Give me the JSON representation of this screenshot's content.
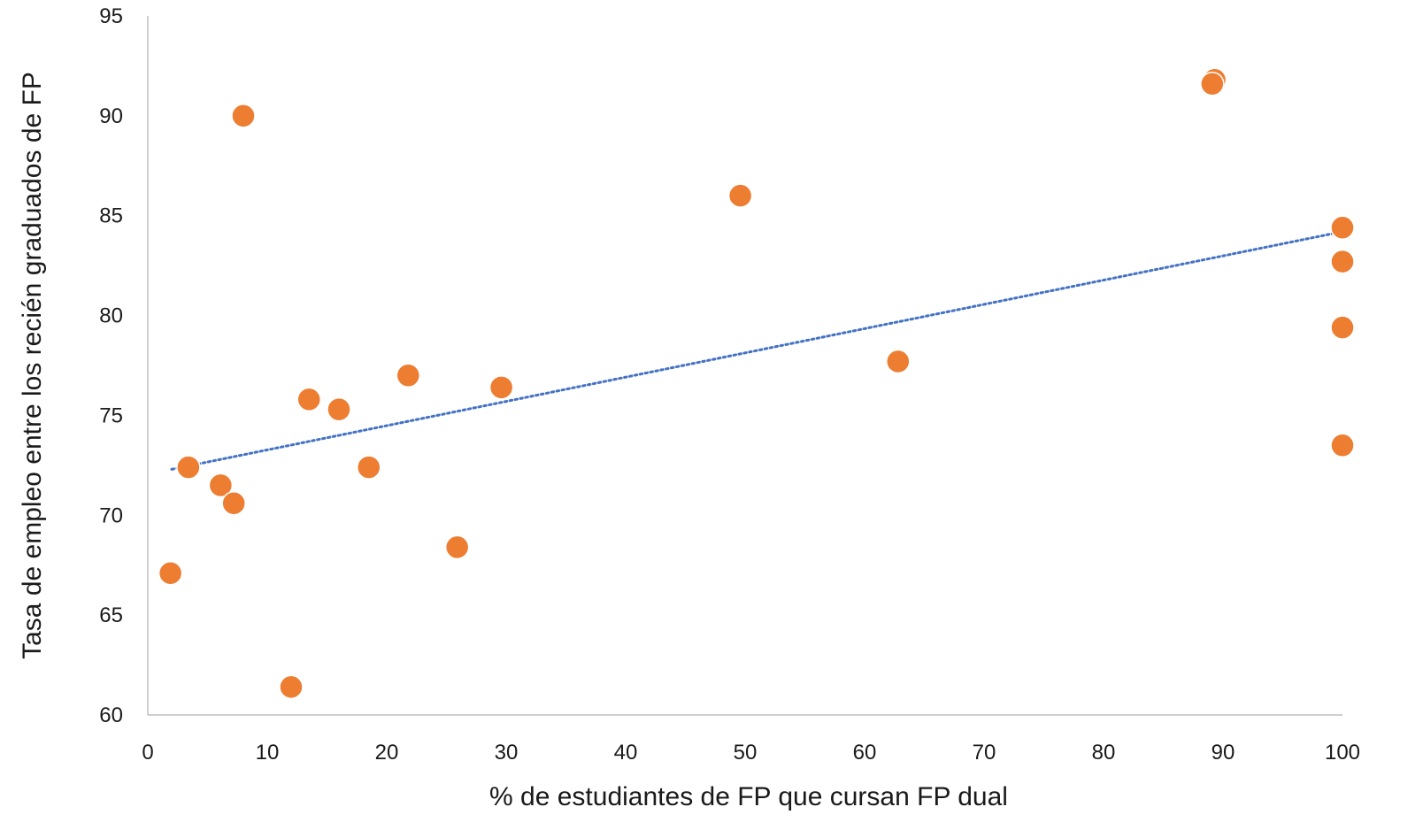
{
  "chart_data": {
    "type": "scatter",
    "title": "",
    "xlabel": "% de estudiantes de FP que cursan FP dual",
    "ylabel": "Tasa de empleo entre los recién graduados de FP",
    "xlim": [
      0,
      100
    ],
    "ylim": [
      60,
      95
    ],
    "xticks": [
      0,
      10,
      20,
      30,
      40,
      50,
      60,
      70,
      80,
      90,
      100
    ],
    "yticks": [
      60,
      65,
      70,
      75,
      80,
      85,
      90,
      95
    ],
    "grid": false,
    "legend": "none",
    "point_color": "#ED7D31",
    "trendline": {
      "type": "linear",
      "style": "dotted",
      "color": "#4472C4",
      "x": [
        2,
        100
      ],
      "y": [
        72.3,
        84.2
      ]
    },
    "series": [
      {
        "points": [
          {
            "x": 1.9,
            "y": 67.1
          },
          {
            "x": 3.4,
            "y": 72.4
          },
          {
            "x": 6.1,
            "y": 71.5
          },
          {
            "x": 7.2,
            "y": 70.6
          },
          {
            "x": 8.0,
            "y": 90.0
          },
          {
            "x": 12.0,
            "y": 61.4
          },
          {
            "x": 13.5,
            "y": 75.8
          },
          {
            "x": 16.0,
            "y": 75.3
          },
          {
            "x": 18.5,
            "y": 72.4
          },
          {
            "x": 21.8,
            "y": 77.0
          },
          {
            "x": 25.9,
            "y": 68.4
          },
          {
            "x": 29.6,
            "y": 76.4
          },
          {
            "x": 49.6,
            "y": 86.0
          },
          {
            "x": 62.8,
            "y": 77.7
          },
          {
            "x": 89.3,
            "y": 91.8
          },
          {
            "x": 89.1,
            "y": 91.6
          },
          {
            "x": 100.0,
            "y": 84.4
          },
          {
            "x": 100.0,
            "y": 82.7
          },
          {
            "x": 100.0,
            "y": 79.4
          },
          {
            "x": 100.0,
            "y": 73.5
          }
        ]
      }
    ]
  }
}
